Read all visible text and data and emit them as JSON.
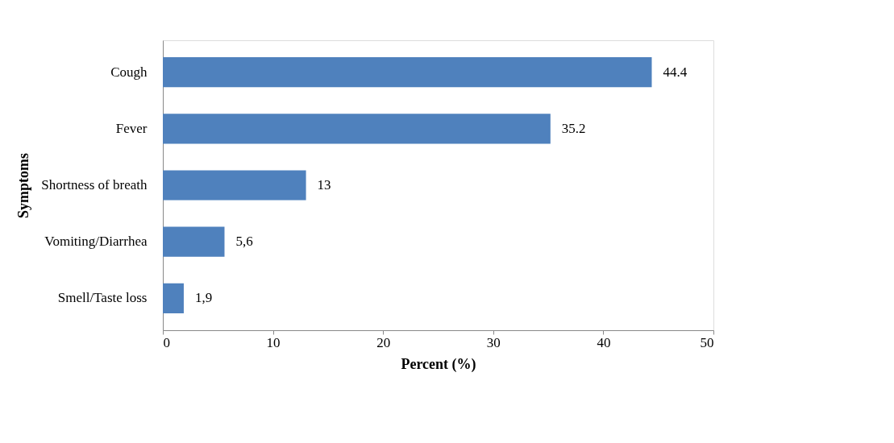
{
  "chart_data": {
    "type": "bar",
    "orientation": "horizontal",
    "xlabel": "Percent (%)",
    "ylabel": "Symptoms",
    "categories": [
      "Cough",
      "Fever",
      "Shortness of breath",
      "Vomiting/Diarrhea",
      "Smell/Taste loss"
    ],
    "values": [
      44.4,
      35.2,
      13,
      5.6,
      1.9
    ],
    "value_labels": [
      "44.4",
      "35.2",
      "13",
      "5,6",
      "1,9"
    ],
    "color": "#4f81bd",
    "xlim": [
      0,
      50
    ],
    "xticks": [
      0,
      10,
      20,
      30,
      40,
      50
    ],
    "grid": false
  }
}
